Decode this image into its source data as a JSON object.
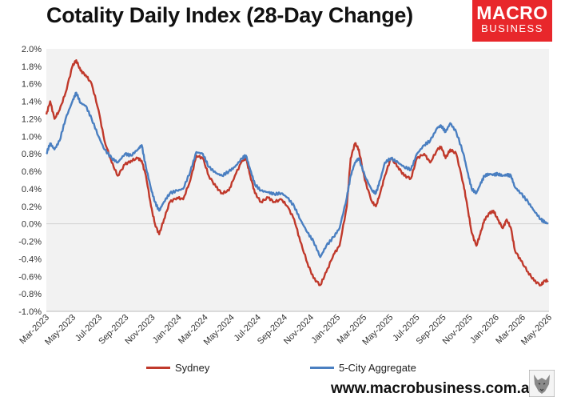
{
  "header": {
    "title": "Cotality Daily Index (28-Day Change)"
  },
  "logo": {
    "line1": "MACRO",
    "line2": "BUSINESS"
  },
  "footer": {
    "url": "www.macrobusiness.com.au"
  },
  "colors": {
    "sydney": "#c0392b",
    "aggregate": "#4a7fc1",
    "plot_bg": "#f2f2f2",
    "brand": "#e8272b"
  },
  "chart_data": {
    "type": "line",
    "title": "Cotality Daily Index (28-Day Change)",
    "xlabel": "",
    "ylabel": "",
    "ylim": [
      -1.0,
      2.0
    ],
    "xlim": [
      "2023-03-01",
      "2026-05-20"
    ],
    "grid": false,
    "legend_position": "bottom",
    "y_ticks": [
      "2.0%",
      "1.8%",
      "1.6%",
      "1.4%",
      "1.2%",
      "1.0%",
      "0.8%",
      "0.6%",
      "0.4%",
      "0.2%",
      "0.0%",
      "-0.2%",
      "-0.4%",
      "-0.6%",
      "-0.8%",
      "-1.0%"
    ],
    "x_ticks": [
      "Mar-2023",
      "May-2023",
      "Jul-2023",
      "Sep-2023",
      "Nov-2023",
      "Jan-2024",
      "Mar-2024",
      "May-2024",
      "Jul-2024",
      "Sep-2024",
      "Nov-2024",
      "Jan-2025",
      "Mar-2025",
      "May-2025",
      "Jul-2025",
      "Sep-2025",
      "Nov-2025",
      "Jan-2026",
      "Mar-2026",
      "May-2026"
    ],
    "series": [
      {
        "name": "Sydney",
        "color": "#c0392b",
        "points": [
          [
            "2023-03-01",
            1.25
          ],
          [
            "2023-03-10",
            1.4
          ],
          [
            "2023-03-20",
            1.2
          ],
          [
            "2023-04-01",
            1.3
          ],
          [
            "2023-04-15",
            1.5
          ],
          [
            "2023-05-01",
            1.8
          ],
          [
            "2023-05-10",
            1.87
          ],
          [
            "2023-05-20",
            1.75
          ],
          [
            "2023-06-01",
            1.7
          ],
          [
            "2023-06-15",
            1.6
          ],
          [
            "2023-07-01",
            1.3
          ],
          [
            "2023-07-15",
            0.95
          ],
          [
            "2023-08-01",
            0.7
          ],
          [
            "2023-08-15",
            0.55
          ],
          [
            "2023-09-01",
            0.68
          ],
          [
            "2023-09-15",
            0.72
          ],
          [
            "2023-10-01",
            0.75
          ],
          [
            "2023-10-10",
            0.72
          ],
          [
            "2023-10-20",
            0.55
          ],
          [
            "2023-11-01",
            0.2
          ],
          [
            "2023-11-10",
            0.0
          ],
          [
            "2023-11-20",
            -0.12
          ],
          [
            "2023-12-01",
            0.05
          ],
          [
            "2023-12-15",
            0.25
          ],
          [
            "2024-01-01",
            0.3
          ],
          [
            "2024-01-15",
            0.28
          ],
          [
            "2024-02-01",
            0.5
          ],
          [
            "2024-02-15",
            0.78
          ],
          [
            "2024-03-01",
            0.75
          ],
          [
            "2024-03-15",
            0.55
          ],
          [
            "2024-04-01",
            0.42
          ],
          [
            "2024-04-15",
            0.35
          ],
          [
            "2024-05-01",
            0.38
          ],
          [
            "2024-05-15",
            0.55
          ],
          [
            "2024-06-01",
            0.72
          ],
          [
            "2024-06-10",
            0.75
          ],
          [
            "2024-06-20",
            0.55
          ],
          [
            "2024-07-01",
            0.35
          ],
          [
            "2024-07-15",
            0.25
          ],
          [
            "2024-08-01",
            0.3
          ],
          [
            "2024-08-15",
            0.25
          ],
          [
            "2024-09-01",
            0.28
          ],
          [
            "2024-09-15",
            0.2
          ],
          [
            "2024-10-01",
            0.05
          ],
          [
            "2024-10-15",
            -0.2
          ],
          [
            "2024-11-01",
            -0.45
          ],
          [
            "2024-11-15",
            -0.62
          ],
          [
            "2024-12-01",
            -0.7
          ],
          [
            "2024-12-15",
            -0.55
          ],
          [
            "2025-01-01",
            -0.35
          ],
          [
            "2025-01-15",
            -0.25
          ],
          [
            "2025-02-01",
            0.2
          ],
          [
            "2025-02-10",
            0.75
          ],
          [
            "2025-02-20",
            0.92
          ],
          [
            "2025-03-01",
            0.85
          ],
          [
            "2025-03-15",
            0.5
          ],
          [
            "2025-04-01",
            0.25
          ],
          [
            "2025-04-10",
            0.2
          ],
          [
            "2025-04-20",
            0.35
          ],
          [
            "2025-05-01",
            0.55
          ],
          [
            "2025-05-15",
            0.75
          ],
          [
            "2025-06-01",
            0.65
          ],
          [
            "2025-06-15",
            0.55
          ],
          [
            "2025-07-01",
            0.52
          ],
          [
            "2025-07-15",
            0.75
          ],
          [
            "2025-08-01",
            0.8
          ],
          [
            "2025-08-15",
            0.7
          ],
          [
            "2025-09-01",
            0.85
          ],
          [
            "2025-09-10",
            0.88
          ],
          [
            "2025-09-20",
            0.75
          ],
          [
            "2025-10-01",
            0.85
          ],
          [
            "2025-10-15",
            0.8
          ],
          [
            "2025-11-01",
            0.45
          ],
          [
            "2025-11-10",
            0.2
          ],
          [
            "2025-11-20",
            -0.1
          ],
          [
            "2025-12-01",
            -0.25
          ],
          [
            "2025-12-10",
            -0.12
          ],
          [
            "2025-12-20",
            0.05
          ],
          [
            "2026-01-01",
            0.12
          ],
          [
            "2026-01-10",
            0.15
          ],
          [
            "2026-01-20",
            0.05
          ],
          [
            "2026-02-01",
            -0.05
          ],
          [
            "2026-02-10",
            0.05
          ],
          [
            "2026-02-20",
            -0.05
          ],
          [
            "2026-03-01",
            -0.3
          ],
          [
            "2026-03-15",
            -0.42
          ],
          [
            "2026-04-01",
            -0.55
          ],
          [
            "2026-04-15",
            -0.65
          ],
          [
            "2026-05-01",
            -0.7
          ],
          [
            "2026-05-10",
            -0.65
          ],
          [
            "2026-05-18",
            -0.65
          ]
        ]
      },
      {
        "name": "5-City Aggregate",
        "color": "#4a7fc1",
        "points": [
          [
            "2023-03-01",
            0.8
          ],
          [
            "2023-03-10",
            0.92
          ],
          [
            "2023-03-20",
            0.85
          ],
          [
            "2023-04-01",
            0.95
          ],
          [
            "2023-04-15",
            1.2
          ],
          [
            "2023-05-01",
            1.4
          ],
          [
            "2023-05-10",
            1.5
          ],
          [
            "2023-05-20",
            1.38
          ],
          [
            "2023-06-01",
            1.35
          ],
          [
            "2023-06-15",
            1.2
          ],
          [
            "2023-07-01",
            1.0
          ],
          [
            "2023-07-15",
            0.85
          ],
          [
            "2023-08-01",
            0.75
          ],
          [
            "2023-08-15",
            0.7
          ],
          [
            "2023-09-01",
            0.8
          ],
          [
            "2023-09-15",
            0.78
          ],
          [
            "2023-10-01",
            0.85
          ],
          [
            "2023-10-10",
            0.9
          ],
          [
            "2023-10-20",
            0.65
          ],
          [
            "2023-11-01",
            0.4
          ],
          [
            "2023-11-10",
            0.25
          ],
          [
            "2023-11-20",
            0.15
          ],
          [
            "2023-12-01",
            0.25
          ],
          [
            "2023-12-15",
            0.35
          ],
          [
            "2024-01-01",
            0.38
          ],
          [
            "2024-01-15",
            0.4
          ],
          [
            "2024-02-01",
            0.6
          ],
          [
            "2024-02-15",
            0.82
          ],
          [
            "2024-03-01",
            0.8
          ],
          [
            "2024-03-15",
            0.65
          ],
          [
            "2024-04-01",
            0.58
          ],
          [
            "2024-04-15",
            0.55
          ],
          [
            "2024-05-01",
            0.6
          ],
          [
            "2024-05-15",
            0.65
          ],
          [
            "2024-06-01",
            0.75
          ],
          [
            "2024-06-10",
            0.78
          ],
          [
            "2024-06-20",
            0.62
          ],
          [
            "2024-07-01",
            0.45
          ],
          [
            "2024-07-15",
            0.38
          ],
          [
            "2024-08-01",
            0.36
          ],
          [
            "2024-08-15",
            0.34
          ],
          [
            "2024-09-01",
            0.35
          ],
          [
            "2024-09-15",
            0.3
          ],
          [
            "2024-10-01",
            0.2
          ],
          [
            "2024-10-15",
            0.05
          ],
          [
            "2024-11-01",
            -0.1
          ],
          [
            "2024-11-15",
            -0.2
          ],
          [
            "2024-12-01",
            -0.38
          ],
          [
            "2024-12-15",
            -0.25
          ],
          [
            "2025-01-01",
            -0.15
          ],
          [
            "2025-01-15",
            -0.05
          ],
          [
            "2025-02-01",
            0.3
          ],
          [
            "2025-02-10",
            0.55
          ],
          [
            "2025-02-20",
            0.7
          ],
          [
            "2025-03-01",
            0.75
          ],
          [
            "2025-03-15",
            0.55
          ],
          [
            "2025-04-01",
            0.38
          ],
          [
            "2025-04-10",
            0.35
          ],
          [
            "2025-04-20",
            0.5
          ],
          [
            "2025-05-01",
            0.7
          ],
          [
            "2025-05-15",
            0.75
          ],
          [
            "2025-06-01",
            0.7
          ],
          [
            "2025-06-15",
            0.65
          ],
          [
            "2025-07-01",
            0.62
          ],
          [
            "2025-07-15",
            0.8
          ],
          [
            "2025-08-01",
            0.9
          ],
          [
            "2025-08-15",
            0.95
          ],
          [
            "2025-09-01",
            1.1
          ],
          [
            "2025-09-10",
            1.12
          ],
          [
            "2025-09-20",
            1.05
          ],
          [
            "2025-10-01",
            1.15
          ],
          [
            "2025-10-15",
            1.05
          ],
          [
            "2025-11-01",
            0.8
          ],
          [
            "2025-11-10",
            0.6
          ],
          [
            "2025-11-20",
            0.4
          ],
          [
            "2025-12-01",
            0.35
          ],
          [
            "2025-12-10",
            0.45
          ],
          [
            "2025-12-20",
            0.55
          ],
          [
            "2026-01-01",
            0.57
          ],
          [
            "2026-01-10",
            0.56
          ],
          [
            "2026-01-20",
            0.57
          ],
          [
            "2026-02-01",
            0.55
          ],
          [
            "2026-02-10",
            0.56
          ],
          [
            "2026-02-20",
            0.55
          ],
          [
            "2026-03-01",
            0.42
          ],
          [
            "2026-03-15",
            0.35
          ],
          [
            "2026-04-01",
            0.25
          ],
          [
            "2026-04-15",
            0.15
          ],
          [
            "2026-05-01",
            0.05
          ],
          [
            "2026-05-10",
            0.02
          ],
          [
            "2026-05-18",
            0.0
          ]
        ]
      }
    ]
  }
}
